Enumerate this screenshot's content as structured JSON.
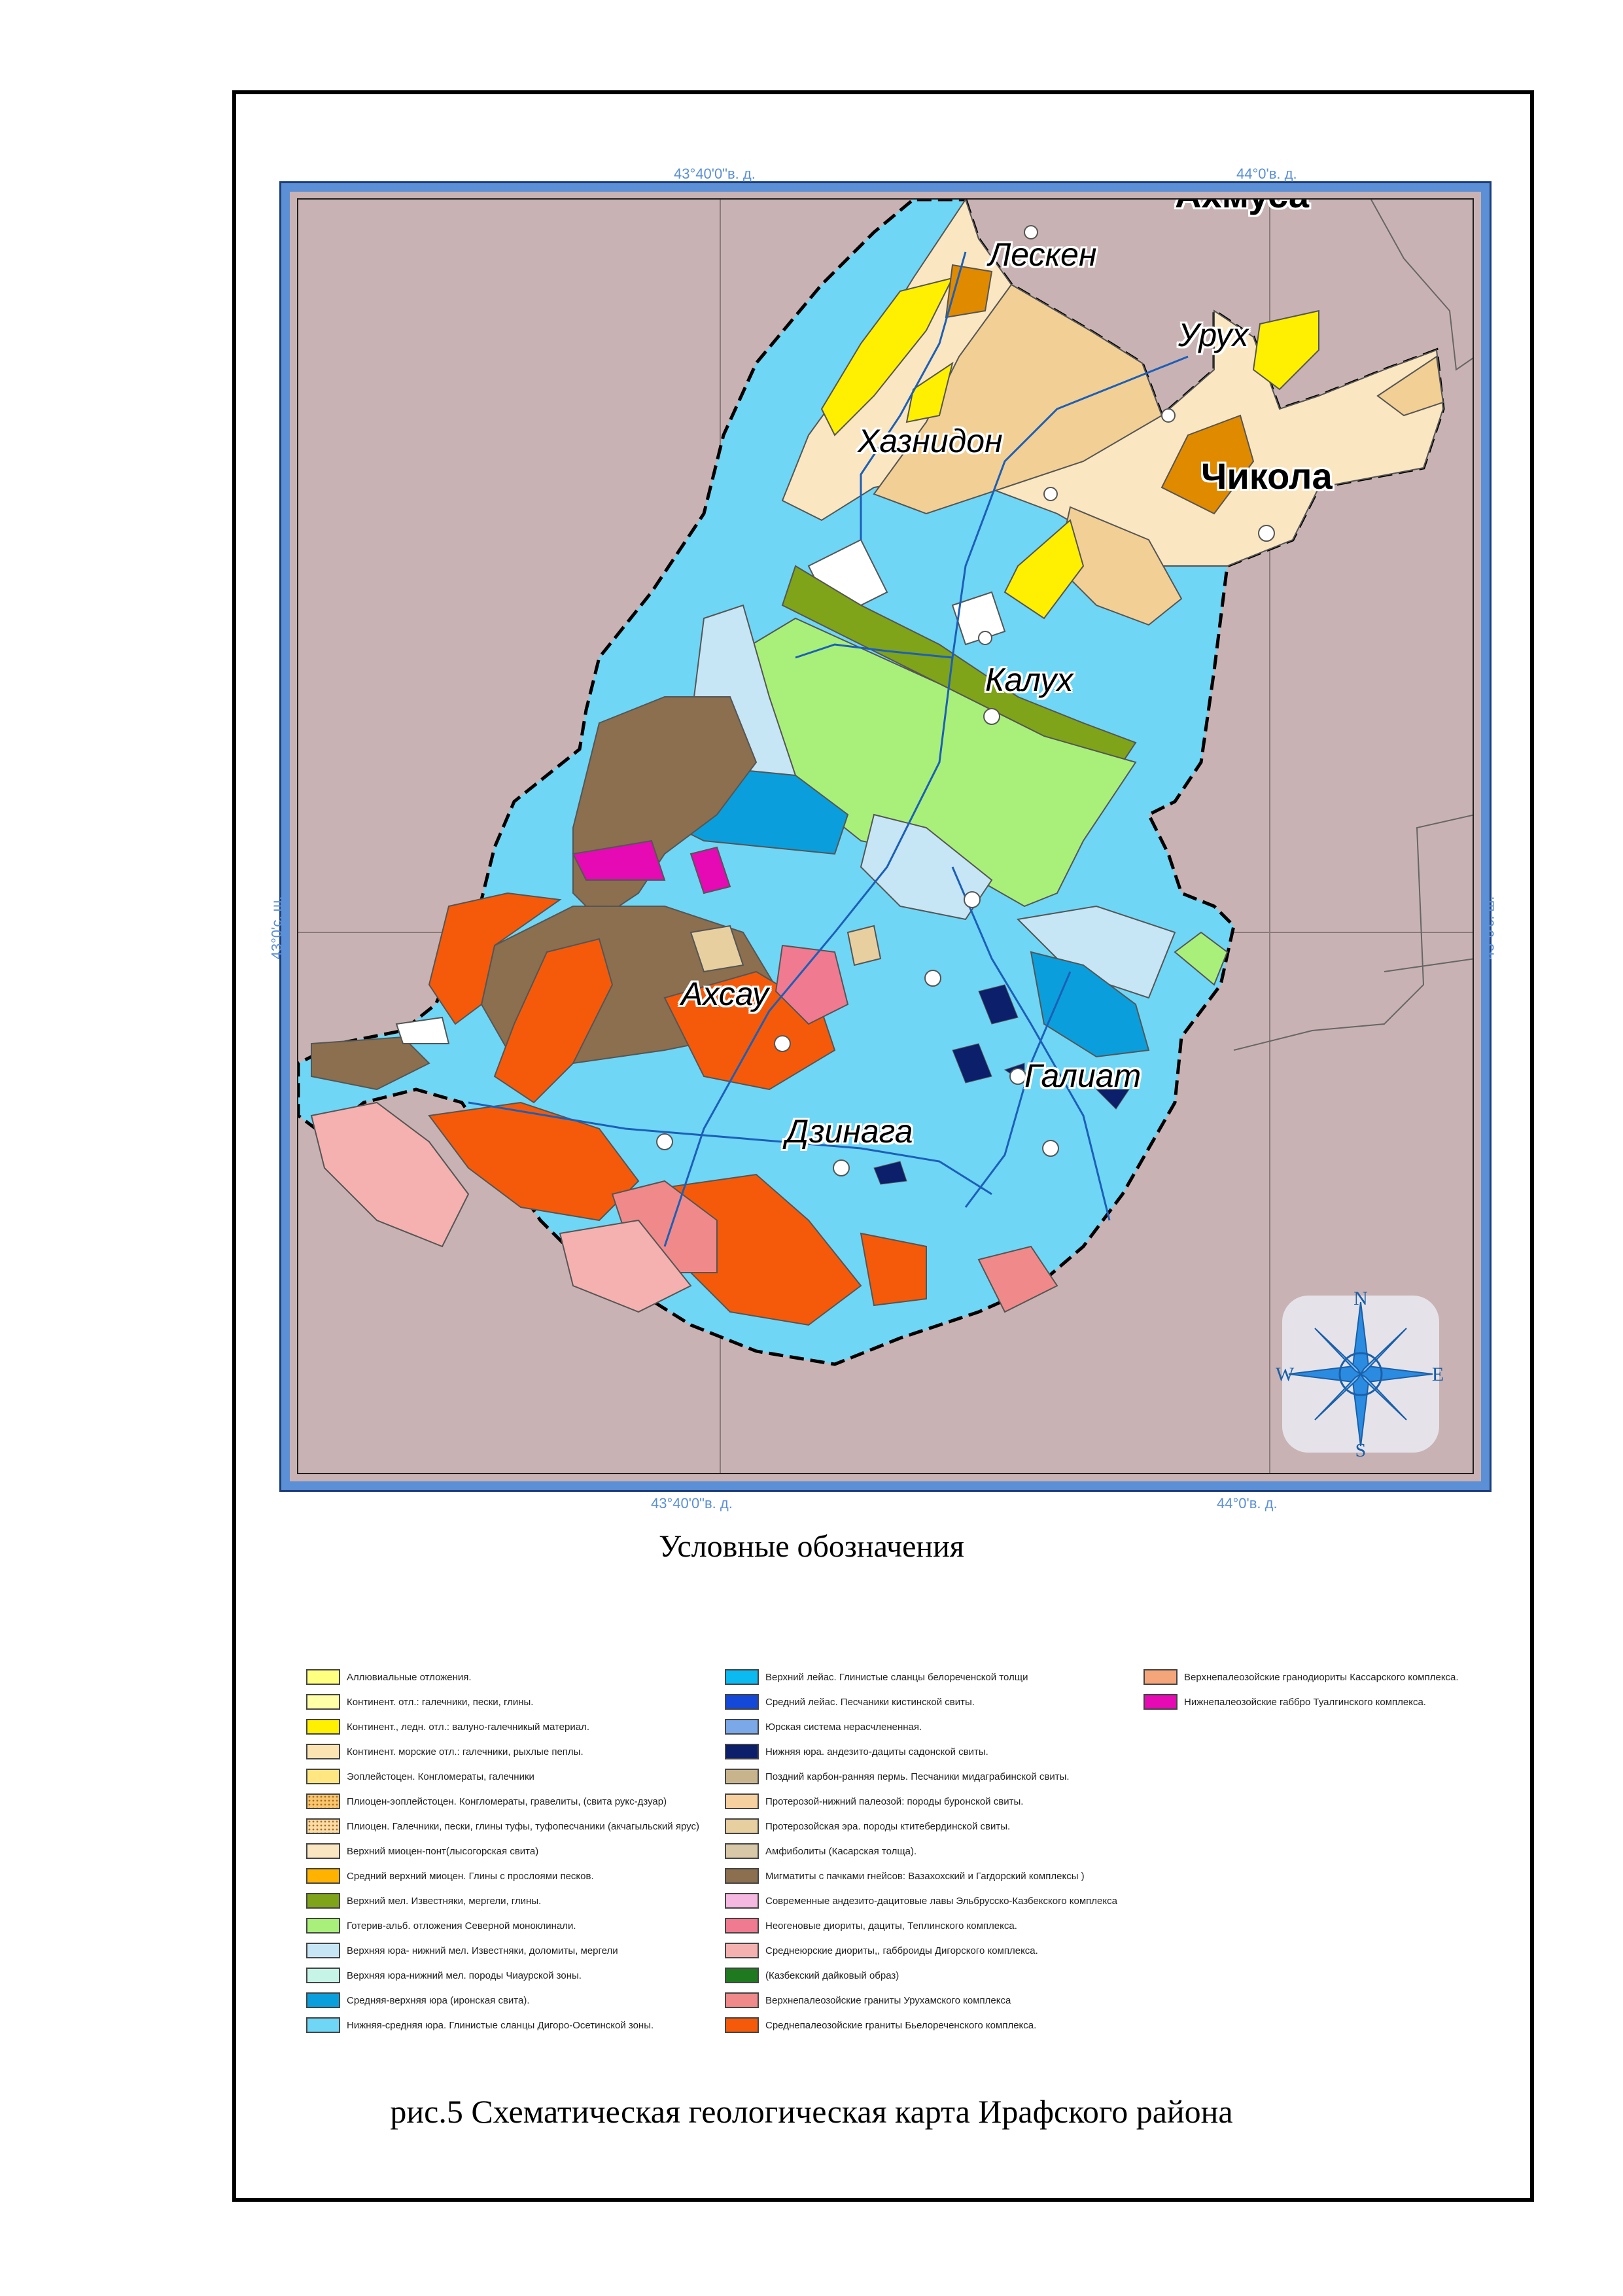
{
  "coords": {
    "top_left": "43°40'0\"в. д.",
    "top_right": "44°0'в. д.",
    "bottom_left": "43°40'0\"в. д.",
    "bottom_right": "44°0'в. д.",
    "left": "43°0'с. ш.",
    "right": "43°0'с. ш."
  },
  "places": {
    "lesken": "Лескен",
    "urukh": "Урух",
    "khaznidon": "Хазнидон",
    "chikola": "Чикола",
    "kalukh": "Калух",
    "akhsau": "Ахсау",
    "galiat": "Галиат",
    "dzinaga": "Дзинага",
    "top_cut": "Ахмуса"
  },
  "compass": {
    "n": "N",
    "s": "S",
    "e": "E",
    "w": "W"
  },
  "legend_title": "Условные обозначения",
  "legend": {
    "col1": [
      {
        "label": "Аллювиальные отложения.",
        "color": "#ffff80"
      },
      {
        "label": "Континент. отл.: галечники, пески, глины.",
        "color": "#ffffa8"
      },
      {
        "label": "Континент., ледн. отл.: валуно-галечникый материал.",
        "color": "#ffef00"
      },
      {
        "label": "Континент. морские отл.: галечники, рыхлые пеплы.",
        "color": "#fbe3b2"
      },
      {
        "label": "Эоплейстоцен. Конгломераты, галечники",
        "color": "#ffe680"
      },
      {
        "label": "Плиоцен-эоплейстоцен. Конгломераты, гравелиты, (свита рукс-дзуар)",
        "color": "#f7c66e",
        "pattern": true
      },
      {
        "label": "Плиоцен. Галечники, пески, глины туфы, туфопесчаники (акчагыльский ярус)",
        "color": "#f8dca6",
        "pattern": true
      },
      {
        "label": "Верхний миоцен-понт(лысогорская свита)",
        "color": "#fae6c0"
      },
      {
        "label": "Средний верхний миоцен. Глины с прослоями песков.",
        "color": "#ffb300"
      },
      {
        "label": "Верхний мел. Известняки, мергели, глины.",
        "color": "#7fa319"
      },
      {
        "label": "Готерив-альб. отложения Северной моноклинали.",
        "color": "#a8f07a"
      },
      {
        "label": "Верхняя юра- нижний мел. Известняки, доломиты, мергели",
        "color": "#c6e5f5"
      },
      {
        "label": "Верхняя юра-нижний мел. породы Чиаурской зоны.",
        "color": "#c6f5e8"
      },
      {
        "label": "Средняя-верхняя юра (иронская свита).",
        "color": "#0a9fdc"
      },
      {
        "label": "Нижняя-средняя юра. Глинистые сланцы Дигоро-Осетинской зоны.",
        "color": "#6fd6f5"
      }
    ],
    "col2": [
      {
        "label": "Верхний лейас. Глинистые сланцы белореченской толщи",
        "color": "#0abaf0"
      },
      {
        "label": "Средний лейас. Песчаники кистинской свиты.",
        "color": "#1448d8"
      },
      {
        "label": "Юрская система нерасчлененная.",
        "color": "#7aa8e8"
      },
      {
        "label": "Нижняя юра.  андезито-дациты садонской свиты.",
        "color": "#0b1f6b"
      },
      {
        "label": "Поздний карбон-ранняя пермь. Песчаники мидаграбинской свиты.",
        "color": "#c8b48c"
      },
      {
        "label": "Протерозой-нижний палеозой: породы буронской свиты.",
        "color": "#f7d0a0"
      },
      {
        "label": "Протерозойская эра. породы ктитебердинской свиты.",
        "color": "#e8cfa0"
      },
      {
        "label": "Амфиболиты  (Касарская толща).",
        "color": "#d9c8a8"
      },
      {
        "label": "Мигматиты с пачками гнейсов: Вазахохский и Гагдорский комплексы )",
        "color": "#8b6f4e"
      },
      {
        "label": "Современные андезито-дацитовые лавы Эльбрусско-Казбекского комплекса",
        "color": "#f5b8e0"
      },
      {
        "label": "Неогеновые диориты, дациты, Теплинского комплекса.",
        "color": "#f07a90"
      },
      {
        "label": "Среднеюрские диориты,, габброиды Дигорского комплекса.",
        "color": "#f5b0b0"
      },
      {
        "label": "(Казбекский дайковый образ)",
        "color": "#1f7a1f"
      },
      {
        "label": "Верхнепалеозойские граниты Урухамского комплекса",
        "color": "#f08a8a"
      },
      {
        "label": "Среднепалеозойские граниты Бьелореченского комплекса.",
        "color": "#f55a0a"
      }
    ],
    "col3": [
      {
        "label": "Верхнепалеозойские гранодиориты Кассарского комплекса.",
        "color": "#f5a57a"
      },
      {
        "label": "Нижнепалеозойские габбро Туалгинского комплекса.",
        "color": "#e60ab4"
      }
    ]
  },
  "caption": "рис.5  Схематическая геологическая карта Ирафского района"
}
